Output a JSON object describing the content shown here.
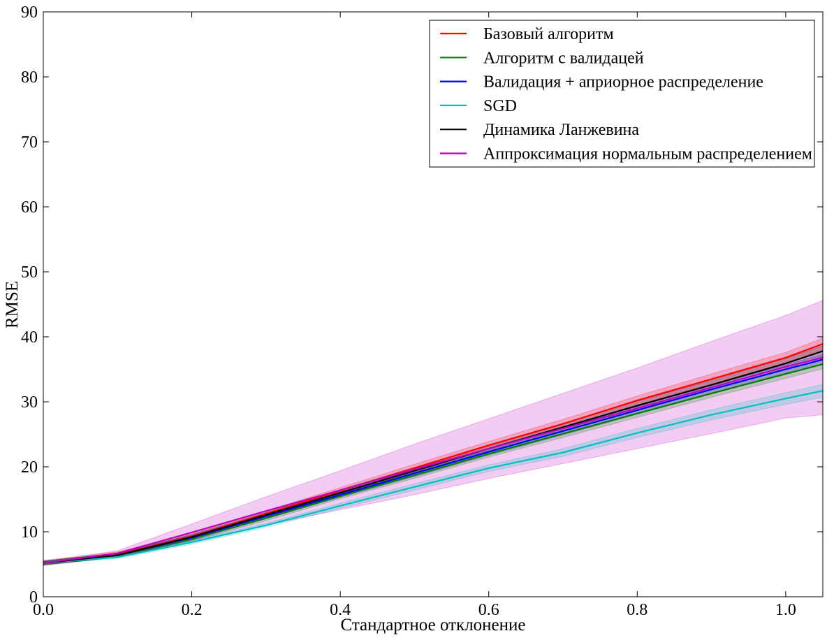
{
  "chart_data": {
    "type": "line",
    "title": "",
    "xlabel": "Стандартное отклонение",
    "ylabel": "RMSE",
    "xlim": [
      0.0,
      1.05
    ],
    "ylim": [
      0,
      90
    ],
    "xticks": [
      "0.0",
      "0.2",
      "0.4",
      "0.6",
      "0.8",
      "1.0"
    ],
    "yticks": [
      "0",
      "10",
      "20",
      "30",
      "40",
      "50",
      "60",
      "70",
      "80",
      "90"
    ],
    "grid": false,
    "legend_position": "top-right",
    "x": [
      0.0,
      0.1,
      0.2,
      0.3,
      0.4,
      0.5,
      0.6,
      0.7,
      0.8,
      0.9,
      1.0,
      1.05
    ],
    "series": [
      {
        "name": "Базовый алгоритм",
        "color": "#ff0000",
        "values": [
          5.2,
          6.5,
          9.3,
          12.8,
          16.3,
          19.8,
          23.3,
          26.6,
          30.2,
          33.5,
          36.8,
          38.9
        ],
        "band": [
          0.4,
          0.4,
          0.4,
          0.4,
          0.5,
          0.6,
          0.6,
          0.7,
          0.7,
          0.8,
          0.8,
          0.9
        ]
      },
      {
        "name": "Алгоритм с валидацей",
        "color": "#008000",
        "values": [
          5.2,
          6.4,
          8.9,
          12.1,
          15.5,
          18.7,
          22.0,
          25.1,
          28.2,
          31.3,
          34.3,
          35.8
        ],
        "band": [
          0.3,
          0.3,
          0.3,
          0.4,
          0.4,
          0.5,
          0.5,
          0.6,
          0.6,
          0.6,
          0.7,
          0.7
        ]
      },
      {
        "name": "Валидация + априорное распределение",
        "color": "#0000ff",
        "values": [
          5.2,
          6.4,
          9.1,
          12.4,
          15.7,
          19.0,
          22.3,
          25.5,
          28.7,
          31.9,
          35.0,
          36.5
        ],
        "band": [
          0.3,
          0.3,
          0.4,
          0.4,
          0.4,
          0.5,
          0.5,
          0.6,
          0.6,
          0.7,
          0.7,
          0.8
        ]
      },
      {
        "name": "SGD",
        "color": "#00bfbf",
        "values": [
          5.2,
          6.1,
          8.4,
          11.0,
          14.0,
          16.9,
          19.8,
          22.2,
          25.2,
          28.0,
          30.5,
          31.7
        ],
        "band": [
          0.2,
          0.2,
          0.3,
          0.3,
          0.4,
          0.5,
          0.5,
          0.6,
          0.7,
          0.8,
          0.9,
          1.0
        ]
      },
      {
        "name": "Динамика Ланжевина",
        "color": "#000000",
        "values": [
          5.2,
          6.4,
          9.2,
          12.6,
          16.0,
          19.4,
          22.8,
          26.1,
          29.4,
          32.6,
          35.9,
          37.8
        ],
        "band": [
          0.3,
          0.3,
          0.4,
          0.4,
          0.5,
          0.5,
          0.6,
          0.6,
          0.7,
          0.7,
          0.8,
          0.8
        ]
      },
      {
        "name": "Аппроксимация нормальным распределением",
        "color": "#bf00bf",
        "values": [
          5.2,
          6.7,
          9.9,
          13.2,
          16.4,
          19.6,
          22.8,
          25.9,
          29.0,
          32.2,
          35.4,
          36.8
        ],
        "band": [
          0.2,
          0.4,
          1.3,
          2.2,
          3.0,
          3.9,
          4.6,
          5.4,
          6.2,
          7.1,
          7.9,
          8.8
        ]
      }
    ]
  }
}
